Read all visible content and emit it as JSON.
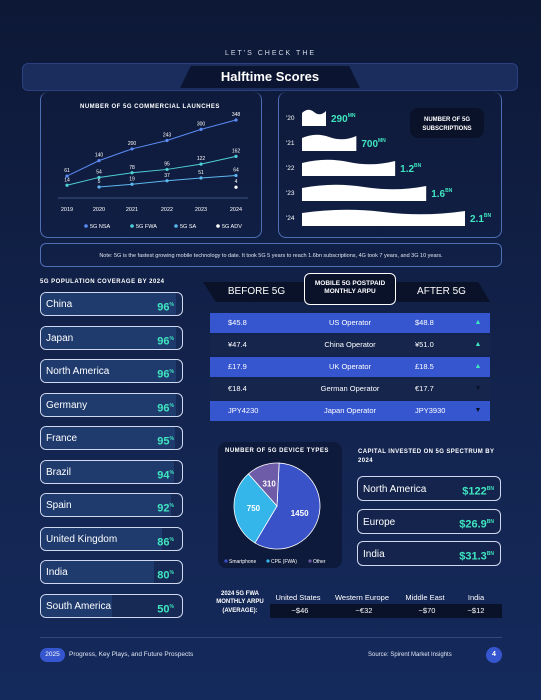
{
  "header": {
    "kicker": "LET'S CHECK THE",
    "title": "Halftime Scores"
  },
  "launches": {
    "title": "NUMBER OF 5G COMMERCIAL LAUNCHES",
    "legend": [
      "5G NSA",
      "5G FWA",
      "5G SA",
      "5G ADV"
    ],
    "colors": [
      "#5b8cf5",
      "#4fd0d6",
      "#5db7ee",
      "#ffffff"
    ]
  },
  "subs": {
    "title_line1": "NUMBER OF 5G",
    "title_line2": "SUBSCRIPTIONS",
    "rows": [
      {
        "year": "'20",
        "value": "290",
        "unit": "MN"
      },
      {
        "year": "'21",
        "value": "700",
        "unit": "MN"
      },
      {
        "year": "'22",
        "value": "1.2",
        "unit": "BN"
      },
      {
        "year": "'23",
        "value": "1.6",
        "unit": "BN"
      },
      {
        "year": "'24",
        "value": "2.1",
        "unit": "BN"
      }
    ]
  },
  "note": "Note: 5G is the fastest growing mobile technology to date. It took 5G 5 years to reach 1.6bn subscriptions, 4G took 7 years, and 3G 10 years.",
  "coverage": {
    "title": "5G POPULATION COVERAGE BY 2024",
    "rows": [
      {
        "country": "China",
        "value": "96",
        "pct": 96
      },
      {
        "country": "Japan",
        "value": "96",
        "pct": 96
      },
      {
        "country": "North America",
        "value": "96",
        "pct": 96
      },
      {
        "country": "Germany",
        "value": "96",
        "pct": 96
      },
      {
        "country": "France",
        "value": "95",
        "pct": 95
      },
      {
        "country": "Brazil",
        "value": "94",
        "pct": 94
      },
      {
        "country": "Spain",
        "value": "92",
        "pct": 92
      },
      {
        "country": "United Kingdom",
        "value": "86",
        "pct": 86
      },
      {
        "country": "India",
        "value": "80",
        "pct": 80
      },
      {
        "country": "South America",
        "value": "50",
        "pct": 50
      }
    ],
    "pct_symbol": "%"
  },
  "arpu": {
    "before_label": "BEFORE 5G",
    "mid_line1": "MOBILE 5G POSTPAID",
    "mid_line2": "MONTHLY ARPU",
    "after_label": "AFTER 5G",
    "rows": [
      {
        "before": "$45.8",
        "operator": "US Operator",
        "after": "$48.8",
        "arrow": "▲"
      },
      {
        "before": "¥47.4",
        "operator": "China Operator",
        "after": "¥51.0",
        "arrow": "▲"
      },
      {
        "before": "£17.9",
        "operator": "UK Operator",
        "after": "£18.5",
        "arrow": "▲"
      },
      {
        "before": "€18.4",
        "operator": "German Operator",
        "after": "€17.7",
        "arrow": "▼"
      },
      {
        "before": "JPY4230",
        "operator": "Japan Operator",
        "after": "JPY3930",
        "arrow": "▼"
      }
    ]
  },
  "devices": {
    "title": "NUMBER OF 5G DEVICE TYPES",
    "legend": [
      "Smartphone",
      "CPE (FWA)",
      "Other"
    ]
  },
  "capital": {
    "title": "CAPITAL INVESTED ON 5G SPECTRUM BY 2024",
    "rows": [
      {
        "region": "North America",
        "value": "$122",
        "unit": "BN"
      },
      {
        "region": "Europe",
        "value": "$26.9",
        "unit": "BN"
      },
      {
        "region": "India",
        "value": "$31.3",
        "unit": "BN"
      }
    ]
  },
  "fwa": {
    "label": "2024 5G FWA MONTHLY ARPU (AVERAGE):",
    "regions": [
      "United States",
      "Western Europe",
      "Middle East",
      "India"
    ],
    "values": [
      "~$46",
      "~€32",
      "~$70",
      "~$12"
    ]
  },
  "footer": {
    "year": "2025",
    "text": "Progress, Key Plays, and Future Prospects",
    "source": "Source: Spirent Market Insights",
    "page": "4"
  },
  "chart_data": [
    {
      "type": "line",
      "title": "NUMBER OF 5G COMMERCIAL LAUNCHES",
      "categories": [
        "2019",
        "2020",
        "2021",
        "2022",
        "2023",
        "2024"
      ],
      "series": [
        {
          "name": "5G NSA",
          "values": [
            61,
            140,
            200,
            243,
            300,
            348
          ]
        },
        {
          "name": "5G FWA",
          "values": [
            14,
            54,
            78,
            95,
            122,
            162
          ]
        },
        {
          "name": "5G SA",
          "values": [
            null,
            5,
            19,
            37,
            51,
            64
          ]
        },
        {
          "name": "5G ADV",
          "values": [
            null,
            null,
            null,
            null,
            null,
            4
          ]
        }
      ]
    },
    {
      "type": "bar",
      "title": "NUMBER OF 5G SUBSCRIPTIONS",
      "categories": [
        "'20",
        "'21",
        "'22",
        "'23",
        "'24"
      ],
      "values": [
        290,
        700,
        1200,
        1600,
        2100
      ]
    },
    {
      "type": "pie",
      "title": "NUMBER OF 5G DEVICE TYPES",
      "categories": [
        "Smartphone",
        "CPE (FWA)",
        "Other"
      ],
      "values": [
        1450,
        750,
        310
      ],
      "colors": [
        "#3a52c8",
        "#34b6ea",
        "#6f5ca8"
      ]
    }
  ]
}
